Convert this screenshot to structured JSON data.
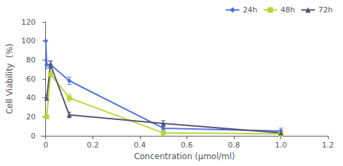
{
  "chart_data": {
    "type": "line",
    "xlabel": "Concentration (μmol/ml)",
    "ylabel": "Cell Viability  (%)",
    "series": [
      {
        "name": "24h",
        "marker": "diamond",
        "x": [
          0.0,
          0.004,
          0.02,
          0.1,
          0.5,
          1.0
        ],
        "values": [
          100,
          75,
          75,
          58,
          8,
          5
        ],
        "yerr": [
          0,
          4,
          3,
          4,
          2,
          3
        ]
      },
      {
        "name": "48h",
        "marker": "square",
        "x": [
          0.004,
          0.02,
          0.1,
          0.5,
          1.0
        ],
        "values": [
          20,
          65,
          40,
          3,
          2
        ],
        "yerr": [
          2,
          3,
          4,
          1,
          1
        ]
      },
      {
        "name": "72h",
        "marker": "triangle",
        "x": [
          0.004,
          0.02,
          0.1,
          0.5,
          1.0
        ],
        "values": [
          40,
          75,
          22,
          13,
          3
        ],
        "yerr": [
          3,
          4,
          3,
          3,
          1
        ]
      }
    ],
    "xlim": [
      -0.02,
      1.2
    ],
    "ylim": [
      0,
      120
    ],
    "xticks": [
      0,
      0.2,
      0.4,
      0.6,
      0.8,
      {
        "value": 1.0,
        "label": "1.0"
      },
      1.2
    ],
    "yticks": [
      0,
      20,
      40,
      60,
      80,
      100,
      120
    ],
    "grid": false,
    "legend": "upper right"
  }
}
